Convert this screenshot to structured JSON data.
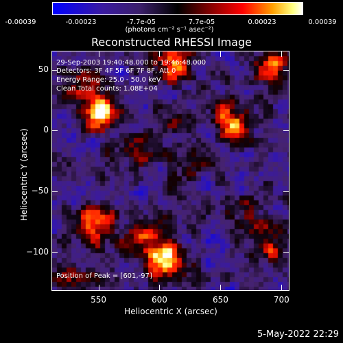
{
  "colorbar": {
    "ticks": [
      "-0.00039",
      "-0.00023",
      "-7.7e-05",
      "7.7e-05",
      "0.00023",
      "0.00039"
    ],
    "unit_line": "(photons cm⁻² s⁻¹ asec⁻²)"
  },
  "title": "Reconstructed RHESSI Image",
  "annotations": {
    "time_range": "29-Sep-2003 19:40:48.000 to 19:46:48.000",
    "detectors": "Detectors: 3F 4F 5F 6F 7F 8F, Att 0",
    "energy": "Energy Range: 25.0 - 50.0 keV",
    "clean": "Clean     Total counts: 1.08E+04",
    "peak": "Position of Peak = [601,-97]"
  },
  "footer": {
    "datestamp": "5-May-2022 22:29"
  },
  "chart_data": {
    "type": "heatmap",
    "title": "Reconstructed RHESSI Image",
    "xlabel": "Heliocentric X (arcsec)",
    "ylabel": "Heliocentric Y (arcsec)",
    "xlim": [
      512,
      706
    ],
    "ylim": [
      -131,
      65
    ],
    "xticks": [
      550,
      600,
      650,
      700
    ],
    "yticks": [
      50,
      0,
      -50,
      -100
    ],
    "color_range": [
      -0.00039,
      0.00039
    ],
    "peak_position": [
      601,
      -97
    ],
    "sources": [
      {
        "x": 551,
        "y": 14,
        "level": 1.0
      },
      {
        "x": 548,
        "y": -78,
        "level": 0.95
      },
      {
        "x": 605,
        "y": -108,
        "level": 1.0
      },
      {
        "x": 590,
        "y": -90,
        "level": 0.6
      },
      {
        "x": 660,
        "y": 8,
        "level": 0.8
      },
      {
        "x": 690,
        "y": 50,
        "level": 0.7
      },
      {
        "x": 612,
        "y": 55,
        "level": 0.75
      },
      {
        "x": 583,
        "y": -17,
        "level": 0.45
      },
      {
        "x": 630,
        "y": -25,
        "level": 0.4
      },
      {
        "x": 688,
        "y": -95,
        "level": 0.6
      },
      {
        "x": 670,
        "y": -70,
        "level": 0.4
      },
      {
        "x": 525,
        "y": -120,
        "level": 0.45
      },
      {
        "x": 610,
        "y": 10,
        "level": 0.35
      },
      {
        "x": 535,
        "y": 40,
        "level": 0.4
      }
    ]
  }
}
